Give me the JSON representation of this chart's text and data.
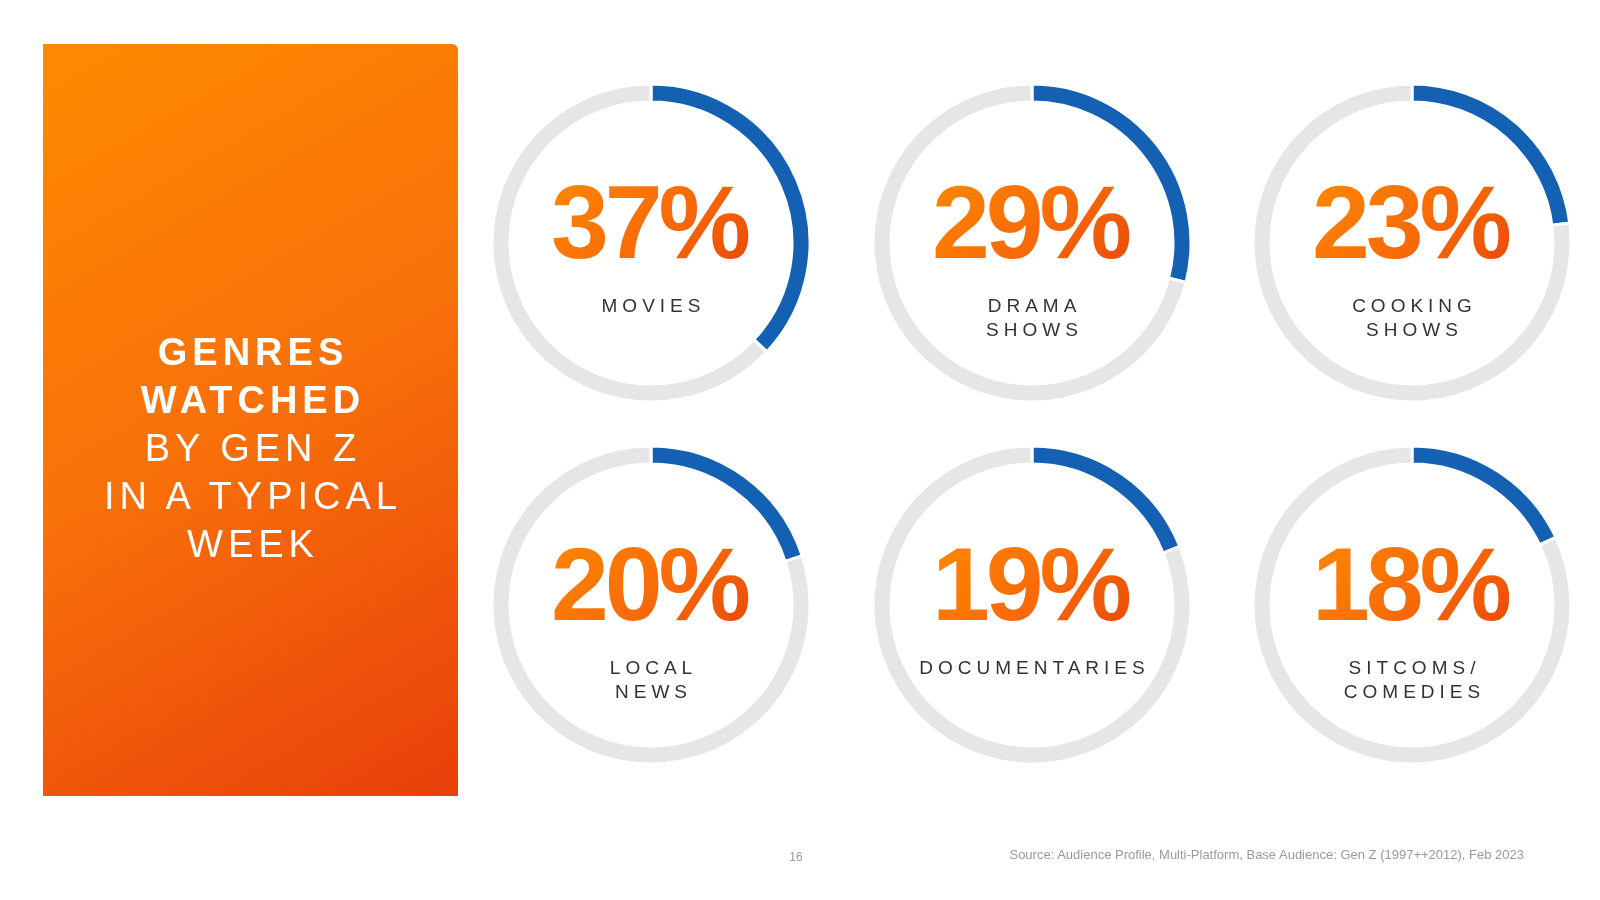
{
  "chart_data": [
    {
      "type": "other",
      "title": "GENRES\nWATCHED",
      "subtitle": "BY GEN Z\nIN A TYPICAL\nWEEK",
      "annotations": [
        "16",
        "Source: Audience Profile, Multi-Platform, Base Audience: Gen Z (1997++2012), Feb 2023"
      ]
    },
    {
      "type": "donut",
      "categories": [
        "MOVIES",
        null
      ],
      "values": [
        37,
        63
      ],
      "colors": [
        "#1461b4",
        "#e6e6e6"
      ],
      "value_labels": [
        "37%",
        null
      ]
    },
    {
      "type": "donut",
      "categories": [
        "DRAMA\nSHOWS",
        null
      ],
      "values": [
        29,
        71
      ],
      "colors": [
        "#1461b4",
        "#e6e6e6"
      ],
      "value_labels": [
        "29%",
        null
      ]
    },
    {
      "type": "donut",
      "categories": [
        "COOKING\nSHOWS",
        null
      ],
      "values": [
        23,
        77
      ],
      "colors": [
        "#1461b4",
        "#e6e6e6"
      ],
      "value_labels": [
        "23%",
        null
      ]
    },
    {
      "type": "donut",
      "categories": [
        "LOCAL\nNEWS",
        null
      ],
      "values": [
        20,
        80
      ],
      "colors": [
        "#1461b4",
        "#e6e6e6"
      ],
      "value_labels": [
        "20%",
        null
      ]
    },
    {
      "type": "donut",
      "categories": [
        "DOCUMENTARIES",
        null
      ],
      "values": [
        19,
        81
      ],
      "colors": [
        "#1461b4",
        "#e6e6e6"
      ],
      "value_labels": [
        "19%",
        null
      ]
    },
    {
      "type": "donut",
      "categories": [
        "SITCOMS/\nCOMEDIES",
        null
      ],
      "values": [
        18,
        82
      ],
      "colors": [
        "#1461b4",
        "#e6e6e6"
      ],
      "value_labels": [
        "18%",
        null
      ]
    }
  ]
}
